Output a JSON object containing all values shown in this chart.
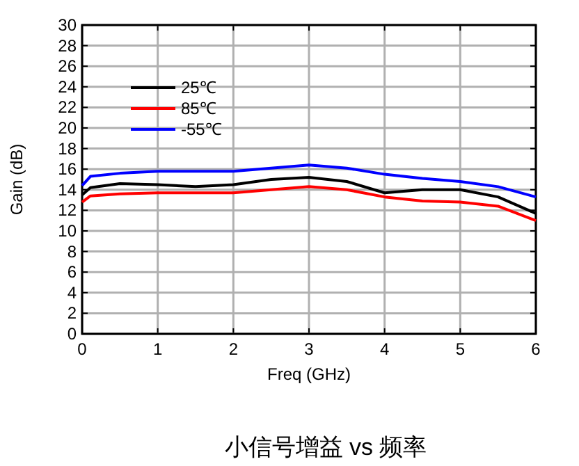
{
  "chart_data": {
    "type": "line",
    "title": "小信号增益 vs 频率",
    "xlabel": "Freq (GHz)",
    "ylabel": "Gain (dB)",
    "x": [
      0,
      0.11,
      0.5,
      1,
      1.5,
      2,
      2.5,
      3,
      3.5,
      4,
      4.5,
      5,
      5.5,
      6
    ],
    "series": [
      {
        "name": "25℃",
        "color": "#000000",
        "values": [
          13.5,
          14.2,
          14.6,
          14.5,
          14.3,
          14.5,
          15.0,
          15.2,
          14.8,
          13.7,
          14.0,
          14.0,
          13.3,
          11.7
        ]
      },
      {
        "name": "85℃",
        "color": "#ff0000",
        "values": [
          12.8,
          13.4,
          13.6,
          13.7,
          13.7,
          13.7,
          14.0,
          14.3,
          14.0,
          13.3,
          12.9,
          12.8,
          12.4,
          11.0
        ]
      },
      {
        "name": "-55℃",
        "color": "#0000ff",
        "values": [
          14.4,
          15.3,
          15.6,
          15.8,
          15.8,
          15.8,
          16.1,
          16.4,
          16.1,
          15.5,
          15.1,
          14.8,
          14.3,
          13.3
        ]
      }
    ],
    "xlim": [
      0,
      6
    ],
    "ylim": [
      0,
      30
    ],
    "xticks": [
      0,
      1,
      2,
      3,
      4,
      5,
      6
    ],
    "yticks": [
      0,
      2,
      4,
      6,
      8,
      10,
      12,
      14,
      16,
      18,
      20,
      22,
      24,
      26,
      28,
      30
    ],
    "grid": true,
    "legend": "top left",
    "line_style": "solid"
  }
}
